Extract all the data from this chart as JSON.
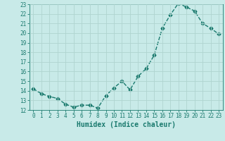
{
  "x": [
    0,
    1,
    2,
    3,
    4,
    5,
    6,
    7,
    8,
    9,
    10,
    11,
    12,
    13,
    14,
    15,
    16,
    17,
    18,
    19,
    20,
    21,
    22,
    23
  ],
  "y": [
    14.2,
    13.7,
    13.4,
    13.2,
    12.6,
    12.3,
    12.5,
    12.5,
    12.2,
    13.5,
    14.3,
    15.0,
    14.1,
    15.5,
    16.3,
    17.7,
    20.5,
    21.9,
    23.1,
    22.7,
    22.3,
    21.0,
    20.5,
    19.9
  ],
  "line_color": "#1a7a6e",
  "bg_color": "#c8eae8",
  "grid_color": "#afd4d0",
  "xlabel": "Humidex (Indice chaleur)",
  "xlim": [
    -0.5,
    23.5
  ],
  "ylim": [
    12,
    23
  ],
  "yticks": [
    12,
    13,
    14,
    15,
    16,
    17,
    18,
    19,
    20,
    21,
    22,
    23
  ],
  "xticks": [
    0,
    1,
    2,
    3,
    4,
    5,
    6,
    7,
    8,
    9,
    10,
    11,
    12,
    13,
    14,
    15,
    16,
    17,
    18,
    19,
    20,
    21,
    22,
    23
  ],
  "marker": "D",
  "marker_size": 2.5,
  "line_width": 1.0,
  "xlabel_fontsize": 7,
  "tick_fontsize": 5.5
}
